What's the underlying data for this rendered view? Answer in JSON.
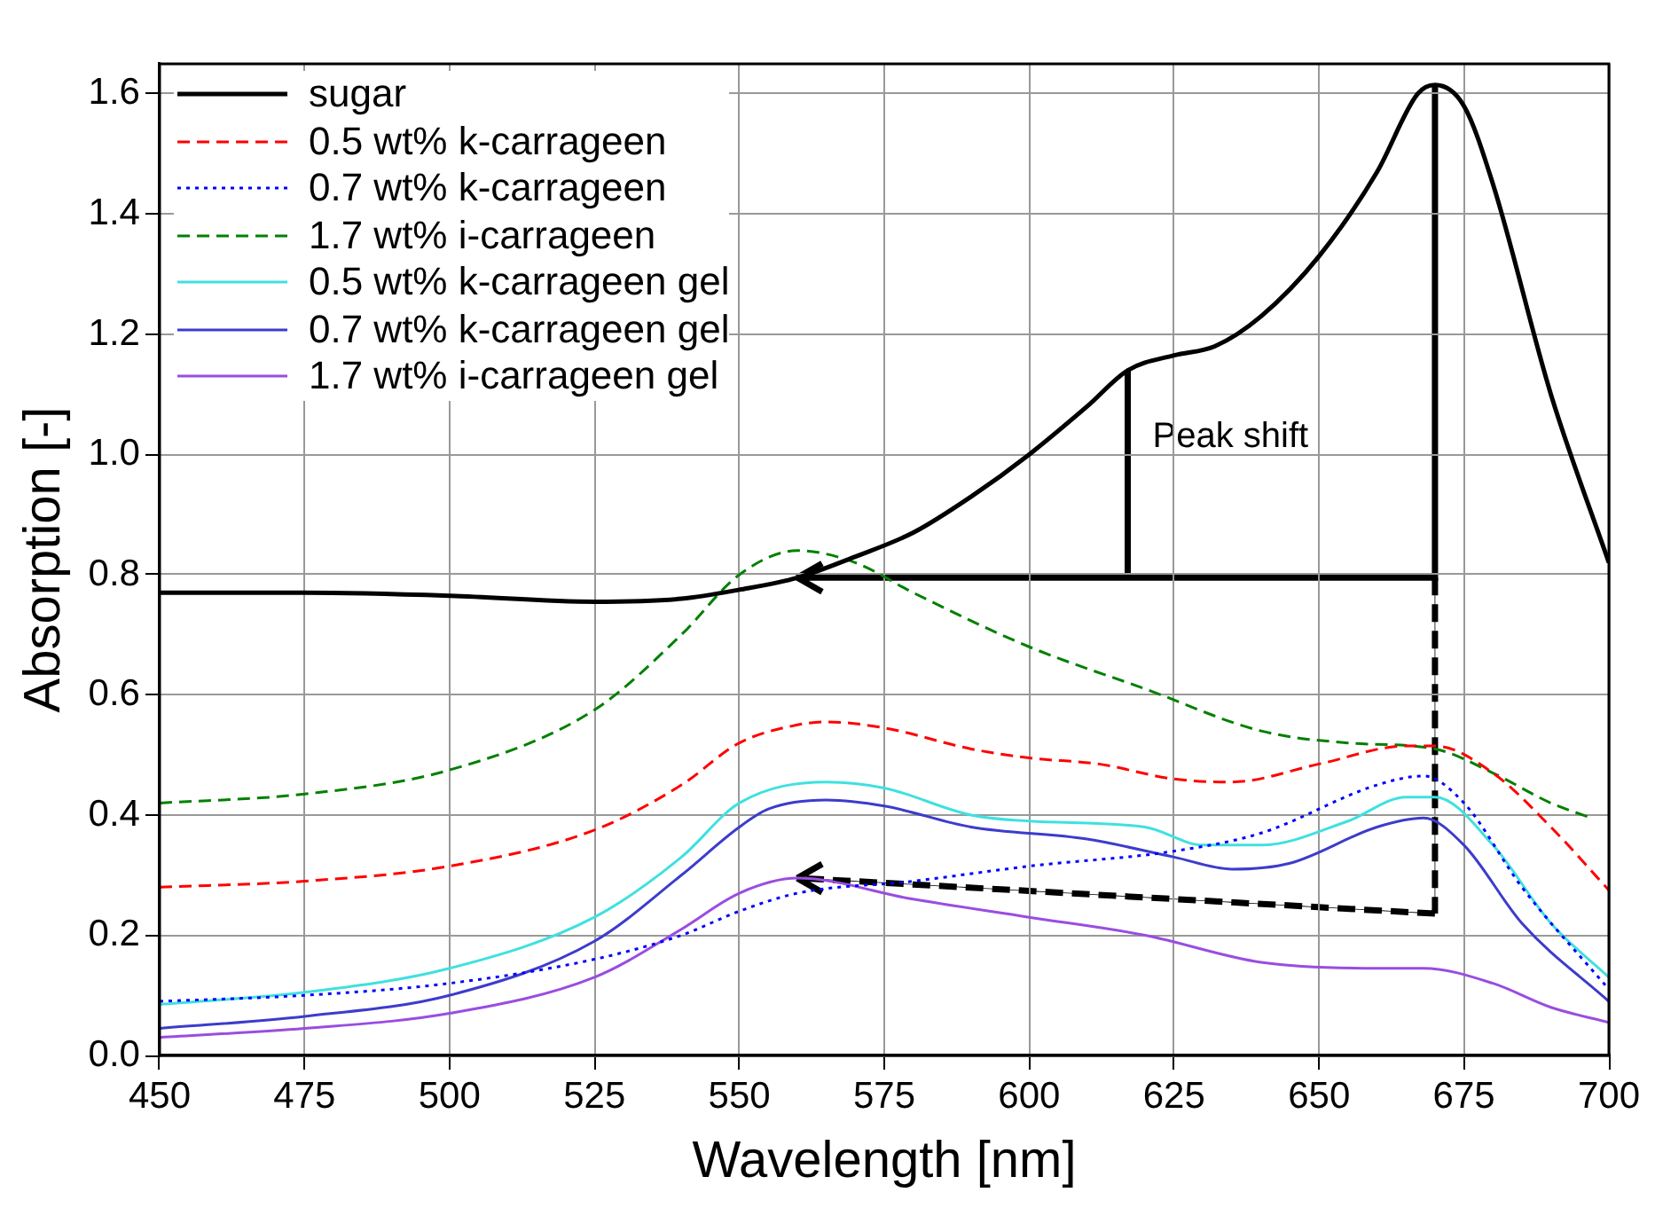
{
  "chart_data": {
    "type": "line",
    "xlabel": "Wavelength [nm]",
    "ylabel": "Absorption [-]",
    "xlim": [
      450,
      700
    ],
    "xticks": [
      450,
      475,
      500,
      525,
      550,
      575,
      600,
      625,
      650,
      675,
      700
    ],
    "ylim": [
      0,
      1.65
    ],
    "yticks": [
      {
        "value": 0,
        "label": "0.0"
      },
      0.2,
      0.4,
      0.6,
      0.8,
      {
        "value": 1,
        "label": "1.0"
      },
      1.2,
      1.4,
      1.6
    ],
    "grid": true,
    "legend": "top left",
    "marker": "none",
    "annotations": [
      {
        "text": "Peak shift",
        "x": 617,
        "y": 1.14
      }
    ],
    "series": [
      {
        "name": "sugar",
        "color": "#000000",
        "line_style": "solid",
        "x": [
          450,
          475,
          500,
          525,
          540,
          550,
          560,
          570,
          580,
          590,
          600,
          610,
          617,
          625,
          632,
          640,
          650,
          660,
          667,
          670,
          675,
          680,
          690,
          700
        ],
        "values": [
          0.77,
          0.77,
          0.765,
          0.755,
          0.76,
          0.775,
          0.795,
          0.83,
          0.87,
          0.93,
          1.0,
          1.08,
          1.14,
          1.165,
          1.18,
          1.23,
          1.33,
          1.47,
          1.6,
          1.615,
          1.58,
          1.45,
          1.1,
          0.82
        ]
      },
      {
        "name": "0.5 wt% k-carrageen",
        "color": "#ff0000",
        "line_style": "dashed",
        "x": [
          450,
          475,
          500,
          525,
          540,
          550,
          560,
          565,
          575,
          590,
          600,
          612,
          625,
          635,
          650,
          665,
          670,
          680,
          690,
          700
        ],
        "values": [
          0.28,
          0.29,
          0.315,
          0.375,
          0.45,
          0.52,
          0.55,
          0.555,
          0.545,
          0.51,
          0.495,
          0.485,
          0.46,
          0.455,
          0.485,
          0.515,
          0.515,
          0.47,
          0.38,
          0.275
        ]
      },
      {
        "name": "0.7 wt% k-carrageen",
        "color": "#0000ff",
        "line_style": "dotted",
        "x": [
          450,
          475,
          500,
          525,
          540,
          550,
          560,
          580,
          600,
          625,
          640,
          660,
          668,
          675,
          685,
          700
        ],
        "values": [
          0.09,
          0.1,
          0.12,
          0.16,
          0.2,
          0.24,
          0.27,
          0.29,
          0.315,
          0.34,
          0.37,
          0.45,
          0.465,
          0.42,
          0.28,
          0.11
        ]
      },
      {
        "name": "1.7 wt% i-carrageen",
        "color": "#008000",
        "line_style": "dashed",
        "x": [
          450,
          475,
          500,
          525,
          540,
          550,
          560,
          570,
          580,
          600,
          620,
          640,
          655,
          670,
          680,
          690,
          697
        ],
        "values": [
          0.42,
          0.435,
          0.475,
          0.575,
          0.7,
          0.8,
          0.84,
          0.82,
          0.77,
          0.68,
          0.61,
          0.54,
          0.52,
          0.51,
          0.47,
          0.42,
          0.395
        ]
      },
      {
        "name": "0.5 wt% k-carrageen gel",
        "color": "#40e0e0",
        "line_style": "solid",
        "x": [
          450,
          475,
          500,
          525,
          540,
          550,
          565,
          575,
          590,
          600,
          620,
          630,
          640,
          655,
          665,
          670,
          680,
          690,
          700
        ],
        "values": [
          0.085,
          0.105,
          0.145,
          0.23,
          0.33,
          0.42,
          0.455,
          0.445,
          0.4,
          0.39,
          0.38,
          0.35,
          0.35,
          0.39,
          0.43,
          0.43,
          0.35,
          0.22,
          0.13
        ]
      },
      {
        "name": "0.7 wt% k-carrageen gel",
        "color": "#3c3ccc",
        "line_style": "solid",
        "x": [
          450,
          475,
          500,
          525,
          540,
          550,
          555,
          565,
          575,
          590,
          610,
          625,
          635,
          645,
          660,
          668,
          675,
          685,
          700
        ],
        "values": [
          0.045,
          0.065,
          0.1,
          0.19,
          0.3,
          0.38,
          0.41,
          0.425,
          0.415,
          0.38,
          0.36,
          0.33,
          0.31,
          0.32,
          0.38,
          0.395,
          0.35,
          0.22,
          0.09
        ]
      },
      {
        "name": "1.7 wt% i-carrageen gel",
        "color": "#9a4de0",
        "line_style": "solid",
        "x": [
          450,
          475,
          500,
          525,
          540,
          550,
          560,
          580,
          600,
          620,
          640,
          660,
          668,
          680,
          690,
          700
        ],
        "values": [
          0.03,
          0.045,
          0.07,
          0.13,
          0.21,
          0.27,
          0.295,
          0.26,
          0.23,
          0.2,
          0.155,
          0.145,
          0.145,
          0.12,
          0.08,
          0.055
        ]
      }
    ]
  }
}
